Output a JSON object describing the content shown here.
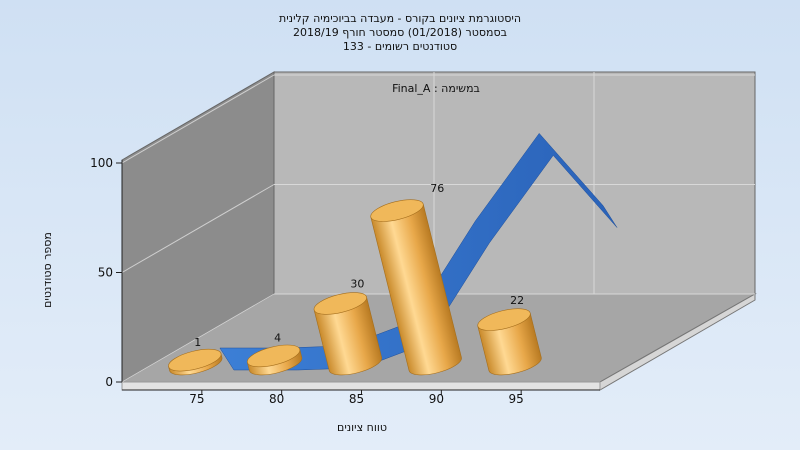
{
  "chart_data": {
    "type": "bar",
    "title_lines": [
      "היסטוגרמת ציונים בקורס - מעבדה בביוכימיה קלינית",
      "בסמסטר  (01/2018)  סמסטר חורף 2018/19",
      "סטודנטים רשומים - 133"
    ],
    "annotation": "במשימה : Final_A",
    "xlabel": "טווח ציונים",
    "ylabel": "מספר סטודנטים",
    "x_ticks": [
      "75",
      "80",
      "85",
      "90",
      "95"
    ],
    "y_ticks": [
      "0",
      "50",
      "100"
    ],
    "ylim": [
      0,
      120
    ],
    "grid": true,
    "series": [
      {
        "type": "bar",
        "categories": [
          "75-80",
          "80-85",
          "85-90",
          "90-95",
          "95-100"
        ],
        "values": [
          1,
          4,
          30,
          76,
          22
        ],
        "data_labels": [
          "1",
          "4",
          "30",
          "76",
          "22"
        ],
        "color": "#e3a23d"
      },
      {
        "type": "area-ribbon",
        "x": [
          76,
          80,
          84,
          88,
          92,
          96,
          100
        ],
        "values": [
          0,
          0,
          1,
          12,
          58,
          98,
          65
        ],
        "color": "#2e6bc2"
      }
    ]
  }
}
